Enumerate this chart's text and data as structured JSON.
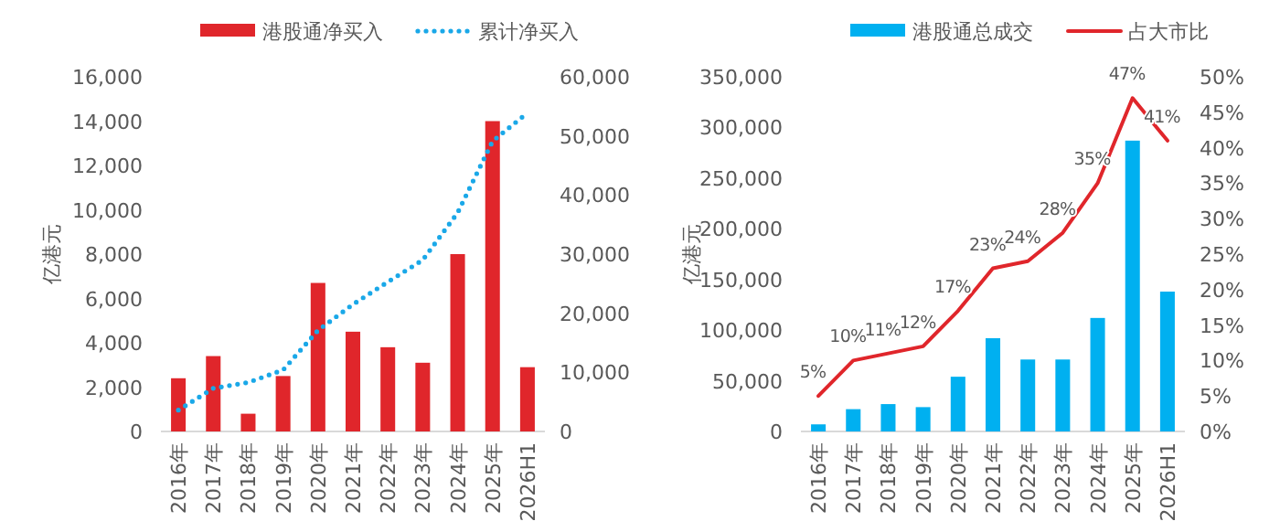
{
  "chart_data": [
    {
      "type": "bar",
      "legend": "top",
      "ylabel": "亿港元",
      "categories": [
        "2016年",
        "2017年",
        "2018年",
        "2019年",
        "2020年",
        "2021年",
        "2022年",
        "2023年",
        "2024年",
        "2025年",
        "2026H1"
      ],
      "series": [
        {
          "name": "港股通净买入",
          "color": "#e0262b",
          "values": [
            2400,
            3400,
            800,
            2500,
            6700,
            4500,
            3800,
            3100,
            8000,
            14000,
            2900
          ]
        },
        {
          "name": "累计净买入",
          "type": "line",
          "axis": "y2",
          "line_style": "dotted",
          "color": "#1aa8e8",
          "values": [
            3600,
            7300,
            8300,
            10400,
            17100,
            21500,
            25300,
            29000,
            37000,
            49100,
            53900
          ]
        }
      ],
      "ylim": [
        0,
        16000
      ],
      "yticks": [
        0,
        {
          "value": 2000,
          "label": "2,000"
        },
        {
          "value": 4000,
          "label": "4,000"
        },
        {
          "value": 6000,
          "label": "6,000"
        },
        {
          "value": 8000,
          "label": "8,000"
        },
        {
          "value": 10000,
          "label": "10,000"
        },
        {
          "value": 12000,
          "label": "12,000"
        },
        {
          "value": 14000,
          "label": "14,000"
        },
        {
          "value": 16000,
          "label": "16,000"
        }
      ],
      "y2lim": [
        0,
        60000
      ],
      "y2ticks": [
        0,
        {
          "value": 10000,
          "label": "10,000"
        },
        {
          "value": 20000,
          "label": "20,000"
        },
        {
          "value": 30000,
          "label": "30,000"
        },
        {
          "value": 40000,
          "label": "40,000"
        },
        {
          "value": 50000,
          "label": "50,000"
        },
        {
          "value": 60000,
          "label": "60,000"
        }
      ]
    },
    {
      "type": "bar",
      "legend": "top",
      "ylabel": "亿港元",
      "categories": [
        "2016年",
        "2017年",
        "2018年",
        "2019年",
        "2020年",
        "2021年",
        "2022年",
        "2023年",
        "2024年",
        "2025年",
        "2026H1"
      ],
      "series": [
        {
          "name": "港股通总成交",
          "color": "#00b0f0",
          "values": [
            7000,
            22000,
            27000,
            24000,
            54000,
            92000,
            71000,
            71000,
            112000,
            287000,
            138000
          ]
        },
        {
          "name": "占大市比",
          "type": "line",
          "axis": "y2",
          "line_style": "solid",
          "color": "#e0262b",
          "values": [
            5,
            10,
            11,
            12,
            17,
            23,
            24,
            28,
            35,
            47,
            41
          ],
          "value_labels": [
            "5%",
            "10%",
            "11%",
            "12%",
            "17%",
            "23%",
            "24%",
            "28%",
            "35%",
            "47%",
            "41%"
          ]
        }
      ],
      "ylim": [
        0,
        350000
      ],
      "yticks": [
        0,
        {
          "value": 50000,
          "label": "50,000"
        },
        {
          "value": 100000,
          "label": "100,000"
        },
        {
          "value": 150000,
          "label": "150,000"
        },
        {
          "value": 200000,
          "label": "200,000"
        },
        {
          "value": 250000,
          "label": "250,000"
        },
        {
          "value": 300000,
          "label": "300,000"
        },
        {
          "value": 350000,
          "label": "350,000"
        }
      ],
      "y2lim": [
        0,
        50
      ],
      "y2ticks": [
        {
          "value": 0,
          "label": "0%"
        },
        {
          "value": 5,
          "label": "5%"
        },
        {
          "value": 10,
          "label": "10%"
        },
        {
          "value": 15,
          "label": "15%"
        },
        {
          "value": 20,
          "label": "20%"
        },
        {
          "value": 25,
          "label": "25%"
        },
        {
          "value": 30,
          "label": "30%"
        },
        {
          "value": 35,
          "label": "35%"
        },
        {
          "value": 40,
          "label": "40%"
        },
        {
          "value": 45,
          "label": "45%"
        },
        {
          "value": 50,
          "label": "50%"
        }
      ]
    }
  ]
}
